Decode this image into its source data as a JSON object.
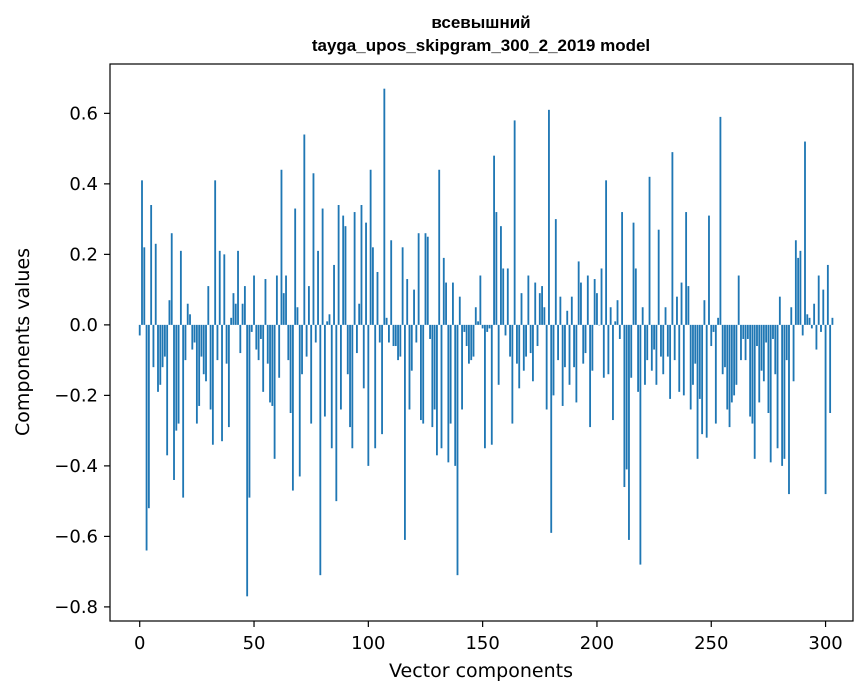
{
  "chart_data": {
    "type": "bar",
    "title": "всевышний",
    "subtitle": "tayga_upos_skipgram_300_2_2019 model",
    "xlabel": "Vector components",
    "ylabel": "Components values",
    "xlim": [
      -13,
      312
    ],
    "ylim": [
      -0.84,
      0.74
    ],
    "xticks": [
      0,
      50,
      100,
      150,
      200,
      250,
      300
    ],
    "yticks": [
      -0.8,
      -0.6,
      -0.4,
      -0.2,
      0.0,
      0.2,
      0.4,
      0.6
    ],
    "xtick_labels": [
      "0",
      "50",
      "100",
      "150",
      "200",
      "250",
      "300"
    ],
    "ytick_labels": [
      "−0.8",
      "−0.6",
      "−0.4",
      "−0.2",
      "0.0",
      "0.2",
      "0.4",
      "0.6"
    ],
    "bar_color": "#1f77b4",
    "grid": false,
    "legend": "none",
    "values": [
      -0.03,
      0.41,
      0.22,
      -0.64,
      -0.52,
      0.34,
      -0.12,
      0.23,
      -0.19,
      -0.17,
      -0.12,
      -0.09,
      -0.37,
      0.07,
      0.26,
      -0.44,
      -0.3,
      -0.28,
      0.21,
      -0.49,
      -0.1,
      0.06,
      0.03,
      -0.07,
      -0.05,
      -0.28,
      -0.23,
      -0.09,
      -0.14,
      -0.16,
      0.11,
      -0.24,
      -0.34,
      0.41,
      -0.1,
      0.21,
      -0.33,
      0.2,
      -0.11,
      -0.29,
      0.02,
      0.09,
      0.06,
      0.21,
      -0.08,
      0.06,
      0.11,
      -0.77,
      -0.49,
      -0.02,
      0.14,
      -0.07,
      -0.1,
      -0.04,
      -0.19,
      0.13,
      -0.11,
      -0.22,
      -0.23,
      -0.38,
      0.14,
      -0.15,
      0.44,
      0.09,
      0.14,
      -0.1,
      -0.25,
      -0.47,
      0.33,
      0.05,
      -0.43,
      -0.14,
      0.54,
      -0.09,
      0.11,
      -0.28,
      0.43,
      -0.05,
      0.21,
      -0.71,
      0.33,
      -0.26,
      0.01,
      0.03,
      -0.35,
      0.17,
      -0.5,
      0.34,
      -0.24,
      0.31,
      0.28,
      -0.14,
      -0.29,
      -0.35,
      0.32,
      -0.08,
      0.06,
      0.34,
      -0.18,
      0.29,
      -0.4,
      0.44,
      0.22,
      -0.35,
      0.15,
      -0.05,
      -0.31,
      0.67,
      0.02,
      -0.05,
      0.24,
      -0.06,
      -0.06,
      -0.1,
      -0.09,
      0.22,
      -0.61,
      0.13,
      -0.24,
      -0.13,
      0.1,
      -0.05,
      0.26,
      -0.27,
      -0.28,
      0.26,
      0.25,
      -0.04,
      -0.29,
      -0.24,
      -0.37,
      0.44,
      -0.35,
      0.19,
      0.12,
      -0.39,
      -0.28,
      0.12,
      -0.4,
      -0.71,
      0.08,
      -0.24,
      -0.02,
      -0.06,
      -0.11,
      -0.1,
      -0.09,
      0.05,
      0.01,
      0.14,
      -0.01,
      -0.35,
      -0.02,
      -0.01,
      -0.34,
      0.48,
      0.32,
      -0.17,
      0.28,
      0.16,
      -0.03,
      0.16,
      -0.09,
      -0.28,
      0.58,
      -0.11,
      -0.18,
      0.09,
      -0.13,
      -0.09,
      0.14,
      -0.08,
      -0.16,
      0.12,
      -0.06,
      0.09,
      0.11,
      0.05,
      -0.24,
      0.61,
      -0.59,
      -0.2,
      0.3,
      -0.1,
      0.08,
      -0.23,
      -0.12,
      0.04,
      -0.17,
      0.08,
      -0.12,
      -0.22,
      0.18,
      0.12,
      -0.11,
      -0.08,
      0.14,
      -0.29,
      -0.13,
      0.13,
      0.09,
      0.0,
      0.16,
      -0.15,
      0.41,
      -0.14,
      0.05,
      -0.27,
      0.01,
      0.07,
      -0.04,
      0.32,
      -0.46,
      -0.41,
      -0.61,
      -0.15,
      0.29,
      0.16,
      -0.19,
      -0.68,
      0.05,
      -0.17,
      -0.1,
      0.42,
      -0.13,
      -0.07,
      -0.17,
      0.27,
      -0.09,
      -0.14,
      0.05,
      -0.09,
      -0.21,
      0.49,
      -0.1,
      0.08,
      -0.19,
      0.12,
      -0.2,
      0.32,
      0.11,
      -0.24,
      -0.17,
      -0.11,
      -0.38,
      -0.21,
      -0.31,
      0.07,
      -0.32,
      0.31,
      -0.06,
      -0.02,
      -0.28,
      0.02,
      0.59,
      -0.14,
      -0.12,
      -0.24,
      -0.29,
      -0.22,
      -0.2,
      -0.17,
      0.14,
      -0.1,
      -0.04,
      -0.1,
      -0.04,
      -0.26,
      -0.28,
      -0.38,
      -0.06,
      -0.22,
      -0.13,
      -0.16,
      -0.05,
      -0.25,
      -0.39,
      -0.04,
      -0.14,
      -0.35,
      0.08,
      -0.4,
      -0.38,
      -0.1,
      -0.48,
      0.05,
      -0.16,
      0.24,
      0.19,
      0.21,
      -0.03,
      0.52,
      0.03,
      0.02,
      -0.01,
      0.06,
      -0.07,
      0.14,
      -0.02,
      0.1,
      -0.48,
      0.17,
      -0.25,
      0.02
    ]
  }
}
